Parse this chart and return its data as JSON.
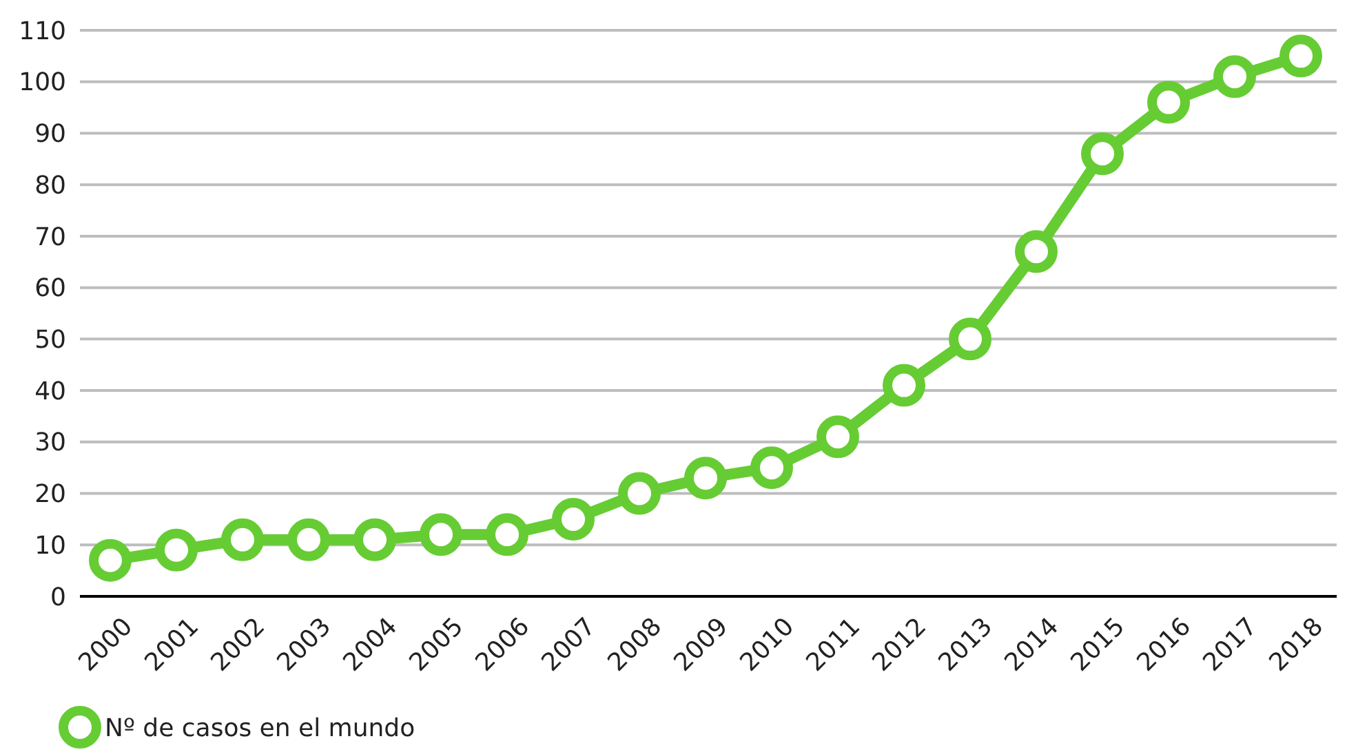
{
  "chart_data": {
    "type": "line",
    "categories": [
      "2000",
      "2001",
      "2002",
      "2003",
      "2004",
      "2005",
      "2006",
      "2007",
      "2008",
      "2009",
      "2010",
      "2011",
      "2012",
      "2013",
      "2014",
      "2015",
      "2016",
      "2017",
      "2018"
    ],
    "series": [
      {
        "name": "Nº de casos en el mundo",
        "color": "#66cc33",
        "values": [
          7,
          9,
          11,
          11,
          11,
          12,
          12,
          15,
          20,
          23,
          25,
          31,
          41,
          50,
          67,
          86,
          96,
          101,
          105
        ]
      }
    ],
    "ylim": [
      0,
      110
    ],
    "yticks": [
      0,
      10,
      20,
      30,
      40,
      50,
      60,
      70,
      80,
      90,
      100,
      110
    ],
    "grid": "y",
    "legend": "bottom left",
    "marker": "circle",
    "line_style": "solid"
  }
}
